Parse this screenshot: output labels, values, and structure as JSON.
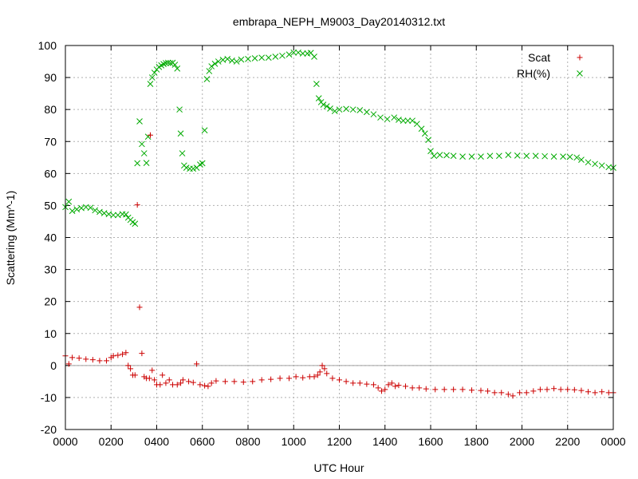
{
  "chart_data": {
    "type": "scatter",
    "title": "embrapa_NEPH_M9003_Day20140312.txt",
    "xlabel": "UTC Hour",
    "ylabel": "Scattering (Mm^-1)",
    "xlim": [
      0,
      2400
    ],
    "ylim": [
      -20,
      100
    ],
    "x_tick_labels": [
      "0000",
      "0200",
      "0400",
      "0600",
      "0800",
      "1000",
      "1200",
      "1400",
      "1600",
      "1800",
      "2000",
      "2200",
      "0000"
    ],
    "y_tick_labels": [
      "-20",
      "-10",
      "0",
      "10",
      "20",
      "30",
      "40",
      "50",
      "60",
      "70",
      "80",
      "90",
      "100"
    ],
    "grid": true,
    "zero_line": true,
    "legend_position": "top-right",
    "series": [
      {
        "name": "Scat",
        "color": "#cc0000",
        "marker": "plus",
        "points": [
          [
            0,
            3
          ],
          [
            15,
            0.5
          ],
          [
            30,
            2.5
          ],
          [
            60,
            2.3
          ],
          [
            90,
            2
          ],
          [
            120,
            1.8
          ],
          [
            150,
            1.5
          ],
          [
            180,
            1.5
          ],
          [
            200,
            2.5
          ],
          [
            210,
            3
          ],
          [
            230,
            3.2
          ],
          [
            250,
            3.5
          ],
          [
            265,
            4
          ],
          [
            275,
            0
          ],
          [
            285,
            -1
          ],
          [
            295,
            -3
          ],
          [
            305,
            -3
          ],
          [
            315,
            50.2
          ],
          [
            325,
            18.2
          ],
          [
            335,
            3.8
          ],
          [
            345,
            -3.5
          ],
          [
            355,
            -4
          ],
          [
            368,
            -4
          ],
          [
            372,
            72
          ],
          [
            380,
            -1.5
          ],
          [
            390,
            -4.5
          ],
          [
            400,
            -6
          ],
          [
            415,
            -6
          ],
          [
            425,
            -3
          ],
          [
            440,
            -5.5
          ],
          [
            455,
            -4.5
          ],
          [
            470,
            -6
          ],
          [
            490,
            -6
          ],
          [
            505,
            -5.5
          ],
          [
            515,
            -4.5
          ],
          [
            540,
            -5
          ],
          [
            560,
            -5.3
          ],
          [
            575,
            0.5
          ],
          [
            590,
            -6
          ],
          [
            610,
            -6.3
          ],
          [
            625,
            -6.5
          ],
          [
            640,
            -5.5
          ],
          [
            660,
            -4.8
          ],
          [
            700,
            -5
          ],
          [
            740,
            -5
          ],
          [
            780,
            -5.2
          ],
          [
            820,
            -5
          ],
          [
            860,
            -4.5
          ],
          [
            900,
            -4.3
          ],
          [
            940,
            -4
          ],
          [
            980,
            -4
          ],
          [
            1010,
            -3.5
          ],
          [
            1040,
            -3.8
          ],
          [
            1070,
            -3.5
          ],
          [
            1090,
            -3.5
          ],
          [
            1105,
            -3
          ],
          [
            1115,
            -2
          ],
          [
            1125,
            0
          ],
          [
            1135,
            -1
          ],
          [
            1145,
            -2.5
          ],
          [
            1170,
            -4
          ],
          [
            1200,
            -4.5
          ],
          [
            1230,
            -5
          ],
          [
            1260,
            -5.5
          ],
          [
            1290,
            -5.5
          ],
          [
            1320,
            -5.8
          ],
          [
            1350,
            -6
          ],
          [
            1370,
            -7
          ],
          [
            1385,
            -8
          ],
          [
            1400,
            -7.5
          ],
          [
            1415,
            -6
          ],
          [
            1430,
            -5.5
          ],
          [
            1445,
            -6.5
          ],
          [
            1460,
            -6.2
          ],
          [
            1490,
            -6.5
          ],
          [
            1520,
            -7
          ],
          [
            1550,
            -7
          ],
          [
            1580,
            -7.3
          ],
          [
            1620,
            -7.5
          ],
          [
            1660,
            -7.5
          ],
          [
            1700,
            -7.5
          ],
          [
            1740,
            -7.5
          ],
          [
            1780,
            -7.7
          ],
          [
            1820,
            -7.8
          ],
          [
            1850,
            -8
          ],
          [
            1880,
            -8.5
          ],
          [
            1910,
            -8.5
          ],
          [
            1940,
            -9
          ],
          [
            1960,
            -9.5
          ],
          [
            1990,
            -8.5
          ],
          [
            2020,
            -8.5
          ],
          [
            2050,
            -8
          ],
          [
            2080,
            -7.5
          ],
          [
            2110,
            -7.5
          ],
          [
            2140,
            -7.2
          ],
          [
            2170,
            -7.5
          ],
          [
            2200,
            -7.5
          ],
          [
            2230,
            -7.6
          ],
          [
            2260,
            -7.8
          ],
          [
            2290,
            -8.2
          ],
          [
            2320,
            -8.5
          ],
          [
            2350,
            -8.2
          ],
          [
            2380,
            -8.5
          ],
          [
            2400,
            -8.5
          ]
        ]
      },
      {
        "name": "RH(%)",
        "color": "#00aa00",
        "marker": "cross",
        "points": [
          [
            0,
            49.5
          ],
          [
            15,
            51.2
          ],
          [
            30,
            48.3
          ],
          [
            50,
            48.8
          ],
          [
            70,
            49.2
          ],
          [
            90,
            49.5
          ],
          [
            110,
            49.3
          ],
          [
            130,
            48.5
          ],
          [
            150,
            48
          ],
          [
            170,
            47.6
          ],
          [
            190,
            47.3
          ],
          [
            210,
            47
          ],
          [
            230,
            47
          ],
          [
            250,
            47.3
          ],
          [
            265,
            47.2
          ],
          [
            275,
            46.2
          ],
          [
            285,
            45.5
          ],
          [
            295,
            44.8
          ],
          [
            305,
            44.3
          ],
          [
            315,
            63.2
          ],
          [
            325,
            76.3
          ],
          [
            335,
            69.2
          ],
          [
            345,
            66.3
          ],
          [
            355,
            63.3
          ],
          [
            362,
            71.5
          ],
          [
            372,
            88
          ],
          [
            380,
            90
          ],
          [
            390,
            91.5
          ],
          [
            400,
            92.5
          ],
          [
            410,
            93.3
          ],
          [
            420,
            93.8
          ],
          [
            430,
            94.2
          ],
          [
            440,
            94.5
          ],
          [
            450,
            94.6
          ],
          [
            460,
            94.5
          ],
          [
            470,
            94.6
          ],
          [
            480,
            94
          ],
          [
            490,
            92.8
          ],
          [
            500,
            80
          ],
          [
            505,
            72.5
          ],
          [
            512,
            66.3
          ],
          [
            520,
            62.5
          ],
          [
            530,
            61.8
          ],
          [
            545,
            61.5
          ],
          [
            560,
            61.5
          ],
          [
            575,
            61.8
          ],
          [
            590,
            62.8
          ],
          [
            600,
            63.2
          ],
          [
            610,
            73.5
          ],
          [
            620,
            89.5
          ],
          [
            630,
            92
          ],
          [
            640,
            93.5
          ],
          [
            655,
            94.3
          ],
          [
            670,
            95
          ],
          [
            690,
            95.5
          ],
          [
            710,
            95.8
          ],
          [
            730,
            95.3
          ],
          [
            750,
            95
          ],
          [
            770,
            95.6
          ],
          [
            800,
            95.8
          ],
          [
            830,
            96
          ],
          [
            860,
            96.2
          ],
          [
            890,
            96.2
          ],
          [
            920,
            96.5
          ],
          [
            950,
            96.8
          ],
          [
            980,
            97.2
          ],
          [
            1000,
            97.8
          ],
          [
            1020,
            97.8
          ],
          [
            1040,
            97.5
          ],
          [
            1060,
            97.5
          ],
          [
            1075,
            97.7
          ],
          [
            1090,
            96.5
          ],
          [
            1100,
            88
          ],
          [
            1110,
            83.5
          ],
          [
            1120,
            82.3
          ],
          [
            1130,
            81.5
          ],
          [
            1145,
            81
          ],
          [
            1160,
            80.3
          ],
          [
            1180,
            79.5
          ],
          [
            1200,
            80
          ],
          [
            1230,
            80.2
          ],
          [
            1260,
            80
          ],
          [
            1290,
            79.8
          ],
          [
            1320,
            79.2
          ],
          [
            1350,
            78.5
          ],
          [
            1380,
            77.5
          ],
          [
            1410,
            77
          ],
          [
            1440,
            77.5
          ],
          [
            1460,
            76.8
          ],
          [
            1480,
            76.5
          ],
          [
            1500,
            76.5
          ],
          [
            1520,
            76.5
          ],
          [
            1540,
            75.5
          ],
          [
            1560,
            74
          ],
          [
            1575,
            72.5
          ],
          [
            1590,
            70.5
          ],
          [
            1600,
            67
          ],
          [
            1615,
            65.5
          ],
          [
            1640,
            65.8
          ],
          [
            1670,
            65.7
          ],
          [
            1700,
            65.5
          ],
          [
            1740,
            65.3
          ],
          [
            1780,
            65.3
          ],
          [
            1820,
            65.3
          ],
          [
            1860,
            65.5
          ],
          [
            1900,
            65.5
          ],
          [
            1940,
            65.8
          ],
          [
            1980,
            65.6
          ],
          [
            2020,
            65.5
          ],
          [
            2060,
            65.5
          ],
          [
            2100,
            65.4
          ],
          [
            2140,
            65.3
          ],
          [
            2180,
            65.3
          ],
          [
            2210,
            65.2
          ],
          [
            2240,
            65
          ],
          [
            2260,
            64.3
          ],
          [
            2290,
            63.5
          ],
          [
            2320,
            63
          ],
          [
            2350,
            62.5
          ],
          [
            2380,
            62
          ],
          [
            2400,
            61.8
          ]
        ]
      }
    ]
  }
}
